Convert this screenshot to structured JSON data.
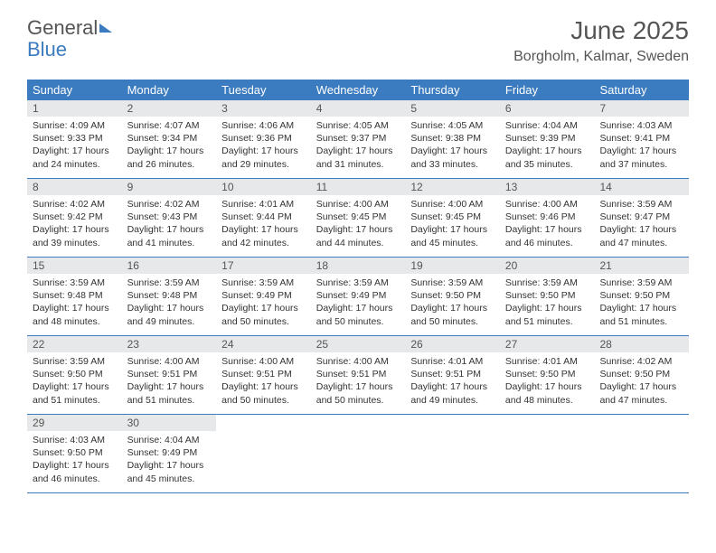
{
  "brand": {
    "word1": "General",
    "word2": "Blue"
  },
  "title": "June 2025",
  "location": "Borgholm, Kalmar, Sweden",
  "colors": {
    "accent": "#3b7bbf",
    "header_text": "#ffffff",
    "daynum_bg": "#e7e8e9",
    "body_bg": "#ffffff",
    "text": "#333333",
    "muted": "#555555"
  },
  "day_labels": [
    "Sunday",
    "Monday",
    "Tuesday",
    "Wednesday",
    "Thursday",
    "Friday",
    "Saturday"
  ],
  "weeks": [
    [
      {
        "n": "1",
        "sr": "4:09 AM",
        "ss": "9:33 PM",
        "dl": "17 hours and 24 minutes."
      },
      {
        "n": "2",
        "sr": "4:07 AM",
        "ss": "9:34 PM",
        "dl": "17 hours and 26 minutes."
      },
      {
        "n": "3",
        "sr": "4:06 AM",
        "ss": "9:36 PM",
        "dl": "17 hours and 29 minutes."
      },
      {
        "n": "4",
        "sr": "4:05 AM",
        "ss": "9:37 PM",
        "dl": "17 hours and 31 minutes."
      },
      {
        "n": "5",
        "sr": "4:05 AM",
        "ss": "9:38 PM",
        "dl": "17 hours and 33 minutes."
      },
      {
        "n": "6",
        "sr": "4:04 AM",
        "ss": "9:39 PM",
        "dl": "17 hours and 35 minutes."
      },
      {
        "n": "7",
        "sr": "4:03 AM",
        "ss": "9:41 PM",
        "dl": "17 hours and 37 minutes."
      }
    ],
    [
      {
        "n": "8",
        "sr": "4:02 AM",
        "ss": "9:42 PM",
        "dl": "17 hours and 39 minutes."
      },
      {
        "n": "9",
        "sr": "4:02 AM",
        "ss": "9:43 PM",
        "dl": "17 hours and 41 minutes."
      },
      {
        "n": "10",
        "sr": "4:01 AM",
        "ss": "9:44 PM",
        "dl": "17 hours and 42 minutes."
      },
      {
        "n": "11",
        "sr": "4:00 AM",
        "ss": "9:45 PM",
        "dl": "17 hours and 44 minutes."
      },
      {
        "n": "12",
        "sr": "4:00 AM",
        "ss": "9:45 PM",
        "dl": "17 hours and 45 minutes."
      },
      {
        "n": "13",
        "sr": "4:00 AM",
        "ss": "9:46 PM",
        "dl": "17 hours and 46 minutes."
      },
      {
        "n": "14",
        "sr": "3:59 AM",
        "ss": "9:47 PM",
        "dl": "17 hours and 47 minutes."
      }
    ],
    [
      {
        "n": "15",
        "sr": "3:59 AM",
        "ss": "9:48 PM",
        "dl": "17 hours and 48 minutes."
      },
      {
        "n": "16",
        "sr": "3:59 AM",
        "ss": "9:48 PM",
        "dl": "17 hours and 49 minutes."
      },
      {
        "n": "17",
        "sr": "3:59 AM",
        "ss": "9:49 PM",
        "dl": "17 hours and 50 minutes."
      },
      {
        "n": "18",
        "sr": "3:59 AM",
        "ss": "9:49 PM",
        "dl": "17 hours and 50 minutes."
      },
      {
        "n": "19",
        "sr": "3:59 AM",
        "ss": "9:50 PM",
        "dl": "17 hours and 50 minutes."
      },
      {
        "n": "20",
        "sr": "3:59 AM",
        "ss": "9:50 PM",
        "dl": "17 hours and 51 minutes."
      },
      {
        "n": "21",
        "sr": "3:59 AM",
        "ss": "9:50 PM",
        "dl": "17 hours and 51 minutes."
      }
    ],
    [
      {
        "n": "22",
        "sr": "3:59 AM",
        "ss": "9:50 PM",
        "dl": "17 hours and 51 minutes."
      },
      {
        "n": "23",
        "sr": "4:00 AM",
        "ss": "9:51 PM",
        "dl": "17 hours and 51 minutes."
      },
      {
        "n": "24",
        "sr": "4:00 AM",
        "ss": "9:51 PM",
        "dl": "17 hours and 50 minutes."
      },
      {
        "n": "25",
        "sr": "4:00 AM",
        "ss": "9:51 PM",
        "dl": "17 hours and 50 minutes."
      },
      {
        "n": "26",
        "sr": "4:01 AM",
        "ss": "9:51 PM",
        "dl": "17 hours and 49 minutes."
      },
      {
        "n": "27",
        "sr": "4:01 AM",
        "ss": "9:50 PM",
        "dl": "17 hours and 48 minutes."
      },
      {
        "n": "28",
        "sr": "4:02 AM",
        "ss": "9:50 PM",
        "dl": "17 hours and 47 minutes."
      }
    ],
    [
      {
        "n": "29",
        "sr": "4:03 AM",
        "ss": "9:50 PM",
        "dl": "17 hours and 46 minutes."
      },
      {
        "n": "30",
        "sr": "4:04 AM",
        "ss": "9:49 PM",
        "dl": "17 hours and 45 minutes."
      },
      {
        "empty": true
      },
      {
        "empty": true
      },
      {
        "empty": true
      },
      {
        "empty": true
      },
      {
        "empty": true
      }
    ]
  ],
  "labels": {
    "sunrise": "Sunrise: ",
    "sunset": "Sunset: ",
    "daylight": "Daylight: "
  }
}
